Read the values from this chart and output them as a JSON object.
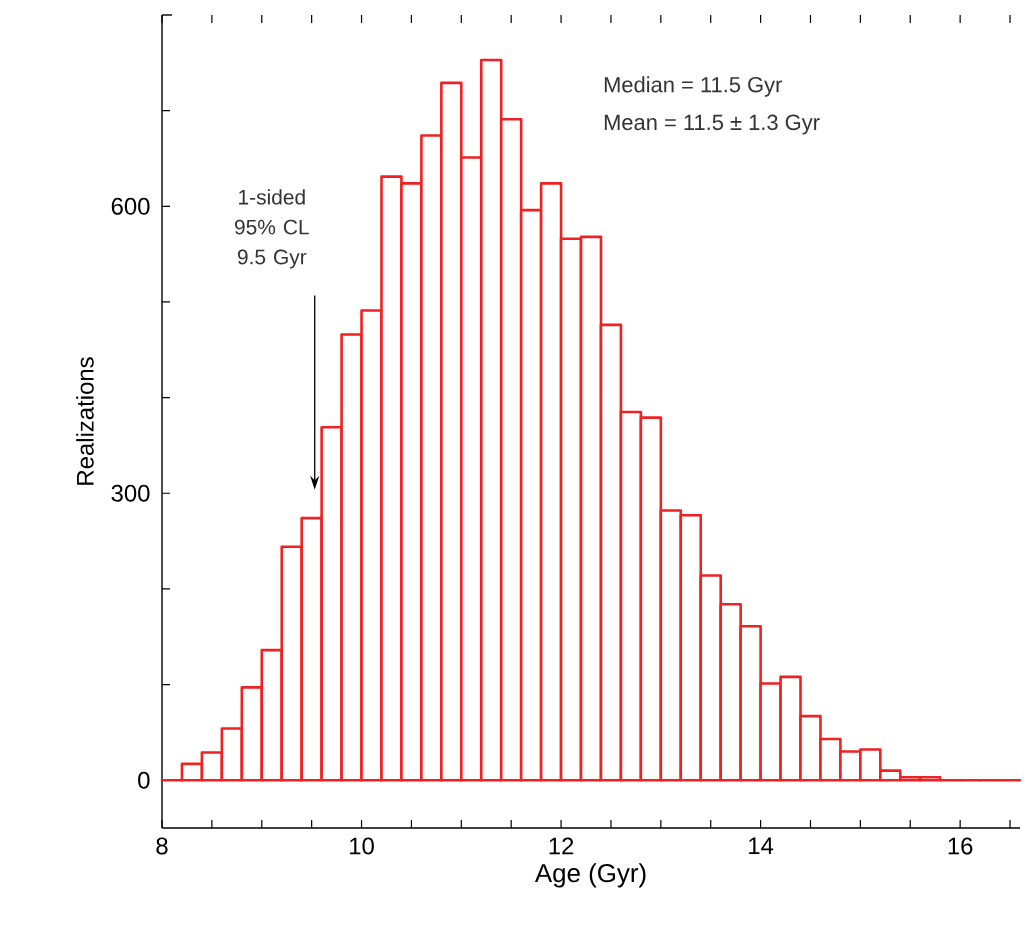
{
  "chart_data": {
    "type": "histogram",
    "xlabel": "Age (Gyr)",
    "ylabel": "Realizations",
    "bins": [
      8.0,
      8.2,
      8.4,
      8.6,
      8.8,
      9.0,
      9.2,
      9.4,
      9.6,
      9.8,
      10.0,
      10.2,
      10.4,
      10.6,
      10.8,
      11.0,
      11.2,
      11.4,
      11.6,
      11.8,
      12.0,
      12.2,
      12.4,
      12.6,
      12.8,
      13.0,
      13.2,
      13.4,
      13.6,
      13.8,
      14.0,
      14.2,
      14.4,
      14.6,
      14.8,
      15.0,
      15.2,
      15.4,
      15.6,
      15.8,
      16.0,
      16.2,
      16.4,
      16.6
    ],
    "values": [
      0,
      17,
      29,
      54,
      97,
      136,
      244,
      274,
      369,
      466,
      491,
      631,
      624,
      674,
      729,
      651,
      753,
      691,
      596,
      624,
      566,
      568,
      476,
      385,
      379,
      282,
      277,
      214,
      184,
      161,
      101,
      108,
      67,
      43,
      30,
      32,
      10,
      3,
      3,
      0,
      0,
      0,
      0
    ],
    "color": "#ee2222",
    "xlim": [
      8,
      16.6
    ],
    "ylim": [
      -50,
      800
    ],
    "xticks": [
      8,
      {
        "value": 8.5,
        "label": null
      },
      {
        "value": 9,
        "label": null
      },
      {
        "value": 9.5,
        "label": null
      },
      10,
      {
        "value": 10.5,
        "label": null
      },
      {
        "value": 11,
        "label": null
      },
      {
        "value": 11.5,
        "label": null
      },
      12,
      {
        "value": 12.5,
        "label": null
      },
      {
        "value": 13,
        "label": null
      },
      {
        "value": 13.5,
        "label": null
      },
      14,
      {
        "value": 14.5,
        "label": null
      },
      {
        "value": 15,
        "label": null
      },
      {
        "value": 15.5,
        "label": null
      },
      16,
      {
        "value": 16.5,
        "label": null
      }
    ],
    "yticks": [
      0,
      {
        "value": 100,
        "label": null
      },
      {
        "value": 200,
        "label": null
      },
      300,
      {
        "value": 400,
        "label": null
      },
      {
        "value": 500,
        "label": null
      },
      600,
      {
        "value": 700,
        "label": null
      }
    ],
    "annotations": [
      "1-sided 95% CL 9.5 Gyr",
      "Median = 11.5 Gyr",
      "Mean = 11.5 ± 1.3 Gyr"
    ]
  }
}
